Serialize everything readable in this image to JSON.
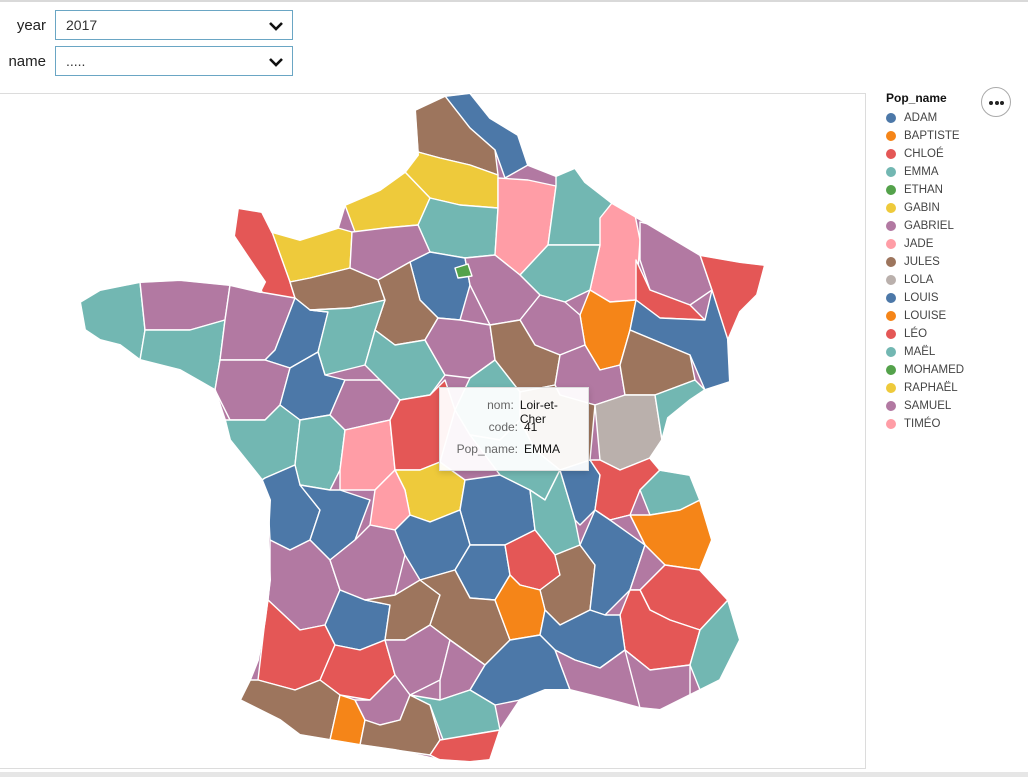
{
  "controls": {
    "year_label": "year",
    "year_value": "2017",
    "name_label": "name",
    "name_value": "....."
  },
  "legend": {
    "title": "Pop_name",
    "items": [
      {
        "label": "ADAM",
        "color": "#4c78a8"
      },
      {
        "label": "BAPTISTE",
        "color": "#f58518"
      },
      {
        "label": "CHLOÉ",
        "color": "#e45756"
      },
      {
        "label": "EMMA",
        "color": "#72b7b2"
      },
      {
        "label": "ETHAN",
        "color": "#54a24b"
      },
      {
        "label": "GABIN",
        "color": "#eeca3b"
      },
      {
        "label": "GABRIEL",
        "color": "#b279a2"
      },
      {
        "label": "JADE",
        "color": "#ff9da6"
      },
      {
        "label": "JULES",
        "color": "#9d755d"
      },
      {
        "label": "LOLA",
        "color": "#bab0ac"
      },
      {
        "label": "LOUIS",
        "color": "#4c78a8"
      },
      {
        "label": "LOUISE",
        "color": "#f58518"
      },
      {
        "label": "LÉO",
        "color": "#e45756"
      },
      {
        "label": "MAËL",
        "color": "#72b7b2"
      },
      {
        "label": "MOHAMED",
        "color": "#54a24b"
      },
      {
        "label": "RAPHAËL",
        "color": "#eeca3b"
      },
      {
        "label": "SAMUEL",
        "color": "#b279a2"
      },
      {
        "label": "TIMÉO",
        "color": "#ff9da6"
      }
    ]
  },
  "tooltip": {
    "rows": [
      {
        "key": "nom:",
        "value": "Loir-et-Cher"
      },
      {
        "key": "code:",
        "value": "41"
      },
      {
        "key": "Pop_name:",
        "value": "EMMA"
      }
    ]
  },
  "map": {
    "land_color": "#b279a2",
    "border_color": "#ffffff"
  }
}
